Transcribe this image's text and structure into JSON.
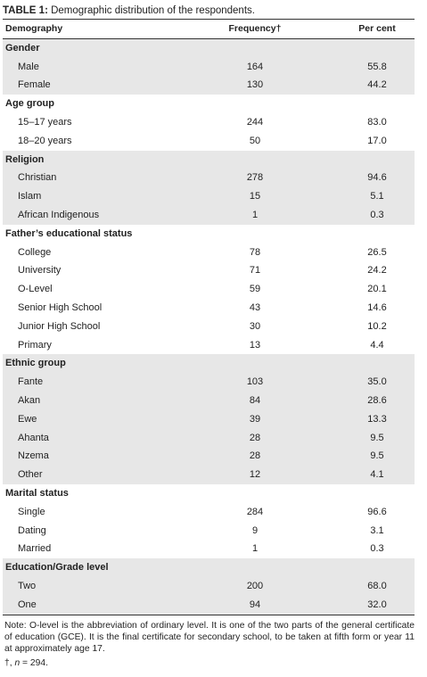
{
  "title": {
    "label": "TABLE 1:",
    "text": " Demographic distribution of the respondents."
  },
  "columns": [
    "Demography",
    "Frequency†",
    "Per cent"
  ],
  "sections": [
    {
      "name": "Gender",
      "rows": [
        [
          "Male",
          "164",
          "55.8"
        ],
        [
          "Female",
          "130",
          "44.2"
        ]
      ]
    },
    {
      "name": "Age group",
      "rows": [
        [
          "15–17 years",
          "244",
          "83.0"
        ],
        [
          "18–20 years",
          "50",
          "17.0"
        ]
      ]
    },
    {
      "name": "Religion",
      "rows": [
        [
          "Christian",
          "278",
          "94.6"
        ],
        [
          "Islam",
          "15",
          "5.1"
        ],
        [
          "African Indigenous",
          "1",
          "0.3"
        ]
      ]
    },
    {
      "name": "Father’s educational status",
      "rows": [
        [
          "College",
          "78",
          "26.5"
        ],
        [
          "University",
          "71",
          "24.2"
        ],
        [
          "O-Level",
          "59",
          "20.1"
        ],
        [
          "Senior High School",
          "43",
          "14.6"
        ],
        [
          "Junior High School",
          "30",
          "10.2"
        ],
        [
          "Primary",
          "13",
          "4.4"
        ]
      ]
    },
    {
      "name": "Ethnic group",
      "rows": [
        [
          "Fante",
          "103",
          "35.0"
        ],
        [
          "Akan",
          "84",
          "28.6"
        ],
        [
          "Ewe",
          "39",
          "13.3"
        ],
        [
          "Ahanta",
          "28",
          "9.5"
        ],
        [
          "Nzema",
          "28",
          "9.5"
        ],
        [
          "Other",
          "12",
          "4.1"
        ]
      ]
    },
    {
      "name": "Marital status",
      "rows": [
        [
          "Single",
          "284",
          "96.6"
        ],
        [
          "Dating",
          "9",
          "3.1"
        ],
        [
          "Married",
          "1",
          "0.3"
        ]
      ]
    },
    {
      "name": "Education/Grade level",
      "rows": [
        [
          "Two",
          "200",
          "68.0"
        ],
        [
          "One",
          "94",
          "32.0"
        ]
      ]
    }
  ],
  "note": "Note: O-level is the abbreviation of ordinary level. It is one of the two parts of the general certificate of education (GCE). It is the final certificate for secondary school, to be taken at fifth form or year 11 at approximately age 17.",
  "footnote": {
    "mark": "†, ",
    "var": "n",
    "rest": " = 294."
  }
}
